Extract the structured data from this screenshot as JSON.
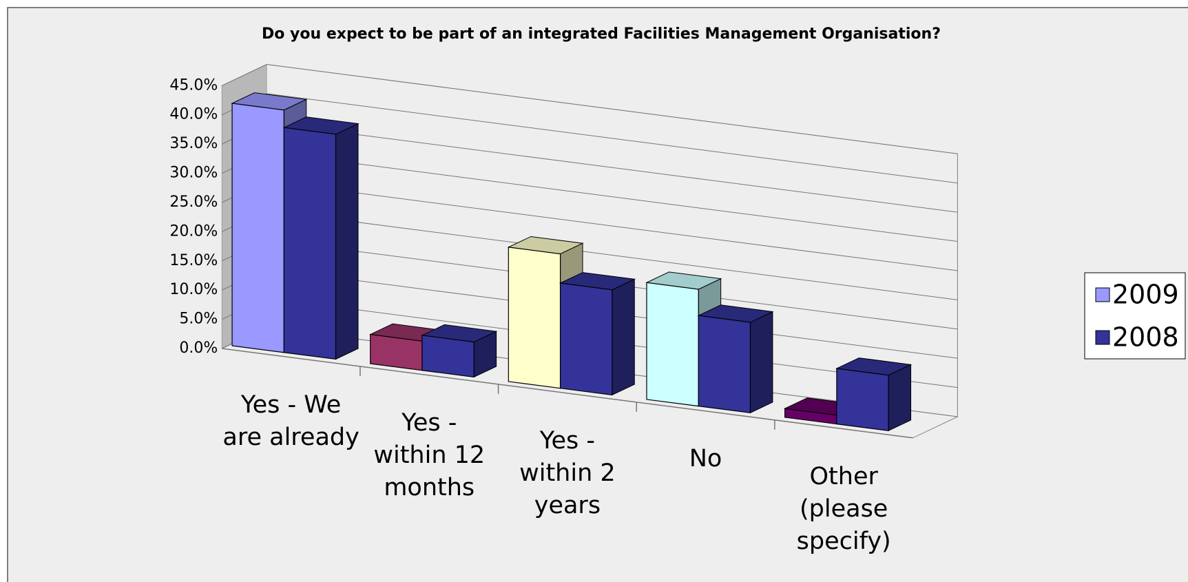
{
  "chart_data": {
    "type": "bar3d",
    "title": "Do you expect to be part of an integrated Facilities Management Organisation?",
    "categories": [
      "Yes - We are already",
      "Yes - within 12 months",
      "Yes - within 2 years",
      "No",
      "Other (please specify)"
    ],
    "series": [
      {
        "name": "2009",
        "color": "#9999ff",
        "colors": [
          "#9999ff",
          "#993366",
          "#ffffcc",
          "#ccffff",
          "#660066"
        ],
        "values": [
          41.5,
          5.0,
          23.0,
          20.0,
          1.5
        ]
      },
      {
        "name": "2008",
        "color": "#333399",
        "values": [
          38.5,
          6.0,
          18.0,
          15.5,
          9.5
        ]
      }
    ],
    "ylim": [
      0,
      45
    ],
    "yticks": [
      {
        "value": 0,
        "label": "0.0%"
      },
      {
        "value": 5,
        "label": "5.0%"
      },
      {
        "value": 10,
        "label": "10.0%"
      },
      {
        "value": 15,
        "label": "15.0%"
      },
      {
        "value": 20,
        "label": "20.0%"
      },
      {
        "value": 25,
        "label": "25.0%"
      },
      {
        "value": 30,
        "label": "30.0%"
      },
      {
        "value": 35,
        "label": "35.0%"
      },
      {
        "value": 40,
        "label": "40.0%"
      },
      {
        "value": 45,
        "label": "45.0%"
      }
    ],
    "grid": true,
    "legend": "right"
  }
}
